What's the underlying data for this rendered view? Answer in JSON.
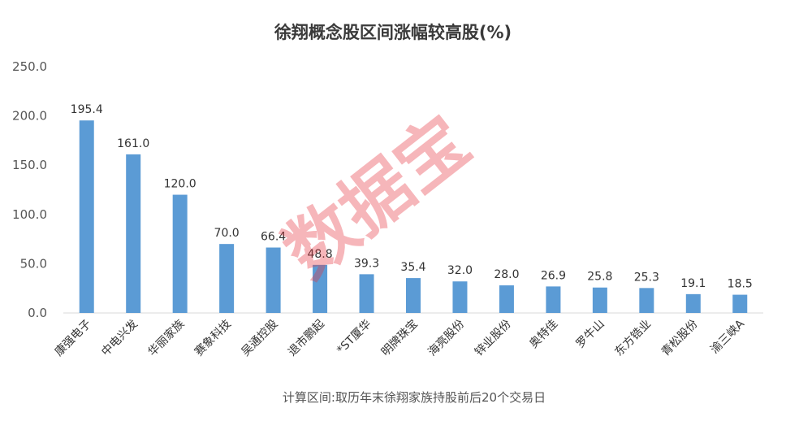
{
  "chart_data": {
    "type": "bar",
    "title": "徐翔概念股区间涨幅较高股(%)",
    "categories": [
      "康强电子",
      "中电兴发",
      "华丽家族",
      "赛象科技",
      "吴通控股",
      "退市鹏起",
      "*ST厦华",
      "明牌珠宝",
      "海亮股份",
      "锌业股份",
      "奥特佳",
      "罗牛山",
      "东方锆业",
      "青松股份",
      "渝三峡A"
    ],
    "values": [
      195.4,
      161.0,
      120.0,
      70.0,
      66.4,
      48.8,
      39.3,
      35.4,
      32.0,
      28.0,
      26.9,
      25.8,
      25.3,
      19.1,
      18.5
    ],
    "value_labels": [
      "195.4",
      "161.0",
      "120.0",
      "70.0",
      "66.4",
      "48.8",
      "39.3",
      "35.4",
      "32.0",
      "28.0",
      "26.9",
      "25.8",
      "25.3",
      "19.1",
      "18.5"
    ],
    "yticks": [
      "0.0",
      "50.0",
      "100.0",
      "150.0",
      "200.0",
      "250.0"
    ],
    "ylim": [
      0,
      250
    ],
    "grid": false,
    "bar_color": "#5b9bd5",
    "note": "计算区间:取历年末徐翔家族持股前后20个交易日"
  },
  "watermark": {
    "text": "数据宝",
    "color": "#e8323c"
  }
}
